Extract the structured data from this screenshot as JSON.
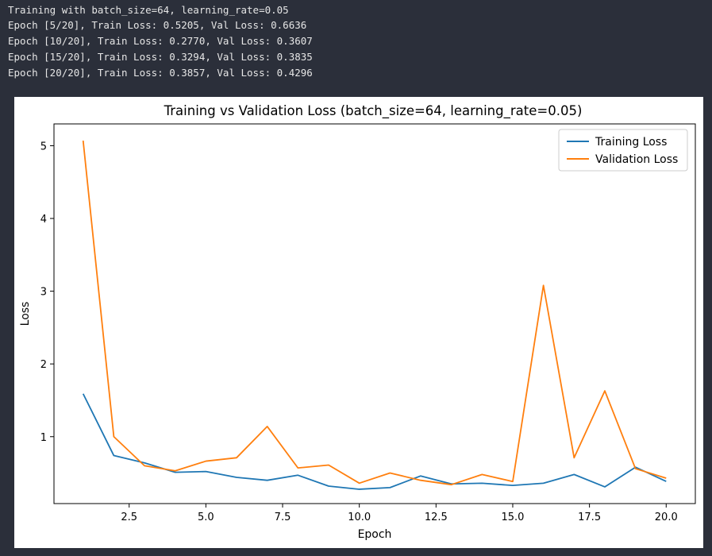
{
  "console": {
    "lines": [
      "Training with batch_size=64, learning_rate=0.05",
      "Epoch [5/20], Train Loss: 0.5205, Val Loss: 0.6636",
      "Epoch [10/20], Train Loss: 0.2770, Val Loss: 0.3607",
      "Epoch [15/20], Train Loss: 0.3294, Val Loss: 0.3835",
      "Epoch [20/20], Train Loss: 0.3857, Val Loss: 0.4296"
    ]
  },
  "chart_data": {
    "type": "line",
    "title": "Training vs Validation Loss (batch_size=64, learning_rate=0.05)",
    "xlabel": "Epoch",
    "ylabel": "Loss",
    "x": [
      1,
      2,
      3,
      4,
      5,
      6,
      7,
      8,
      9,
      10,
      11,
      12,
      13,
      14,
      15,
      16,
      17,
      18,
      19,
      20
    ],
    "xlim": [
      0.05,
      20.95
    ],
    "ylim": [
      0.08,
      5.3
    ],
    "xticks": [
      2.5,
      5.0,
      7.5,
      10.0,
      12.5,
      15.0,
      17.5,
      20.0
    ],
    "xtick_labels": [
      "2.5",
      "5.0",
      "7.5",
      "10.0",
      "12.5",
      "15.0",
      "17.5",
      "20.0"
    ],
    "yticks": [
      1,
      2,
      3,
      4,
      5
    ],
    "ytick_labels": [
      "1",
      "2",
      "3",
      "4",
      "5"
    ],
    "grid": false,
    "legend_position": "top-right",
    "series": [
      {
        "name": "Training Loss",
        "color": "#1f77b4",
        "values": [
          1.59,
          0.74,
          0.64,
          0.51,
          0.5205,
          0.44,
          0.4,
          0.47,
          0.32,
          0.277,
          0.3,
          0.46,
          0.35,
          0.36,
          0.3294,
          0.36,
          0.48,
          0.31,
          0.58,
          0.3857
        ]
      },
      {
        "name": "Validation Loss",
        "color": "#ff7f0e",
        "values": [
          5.07,
          1.0,
          0.6,
          0.53,
          0.6636,
          0.71,
          1.14,
          0.57,
          0.61,
          0.3607,
          0.5,
          0.4,
          0.34,
          0.48,
          0.3835,
          3.08,
          0.71,
          1.63,
          0.56,
          0.4296
        ]
      }
    ]
  }
}
